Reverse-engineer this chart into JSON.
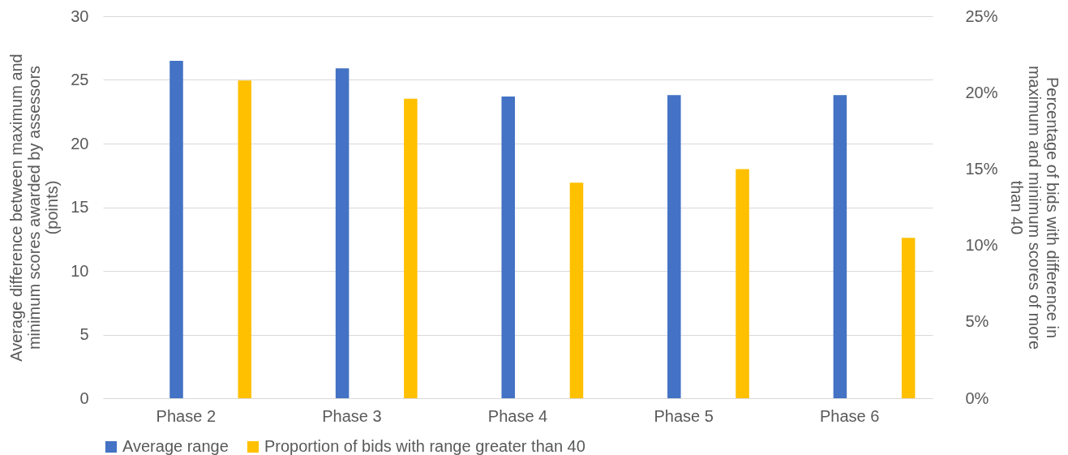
{
  "chart_data": {
    "type": "bar",
    "categories": [
      "Phase 2",
      "Phase 3",
      "Phase 4",
      "Phase 5",
      "Phase 6"
    ],
    "ylabel": "Average difference between maximum and minimum scores awarded by assessors (points)",
    "y2label": "Percentage of bids with difference in maximum and minimum scores of more than 40",
    "ylim": [
      0,
      30
    ],
    "yticks": [
      0,
      5,
      10,
      15,
      20,
      25,
      30
    ],
    "y2lim": [
      0,
      25
    ],
    "y2ticks": [
      {
        "value": 0,
        "label": "0%"
      },
      {
        "value": 5,
        "label": "5%"
      },
      {
        "value": 10,
        "label": "10%"
      },
      {
        "value": 15,
        "label": "15%"
      },
      {
        "value": 20,
        "label": "20%"
      },
      {
        "value": 25,
        "label": "25%"
      }
    ],
    "series": [
      {
        "name": "Average range",
        "color": "#4472c4",
        "values": [
          26.5,
          25.9,
          23.7,
          23.8,
          23.8
        ]
      },
      {
        "name": "Proportion of bids with range greater than 40",
        "color": "#ffc000",
        "axis": "y2",
        "values": [
          20.8,
          19.6,
          14.1,
          15.0,
          10.5
        ]
      }
    ],
    "grid": "y",
    "legend": "bottom"
  }
}
